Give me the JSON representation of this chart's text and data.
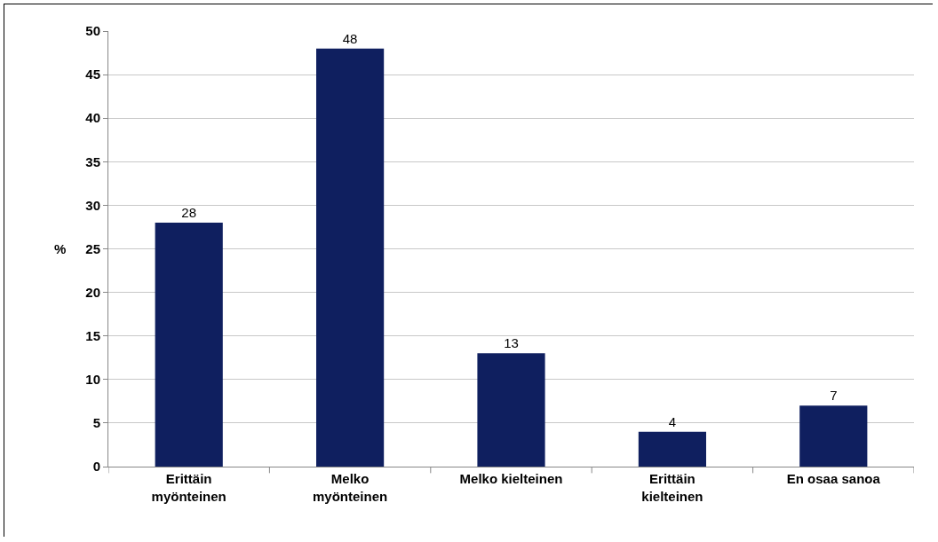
{
  "chart_data": {
    "type": "bar",
    "ylabel": "%",
    "categories": [
      "Erittäin\nmyönteinen",
      "Melko\nmyönteinen",
      "Melko kielteinen",
      "Erittäin\nkielteinen",
      "En osaa sanoa"
    ],
    "values": [
      28,
      48,
      13,
      4,
      7
    ],
    "color": "#0f1f5f",
    "data_labels": true,
    "ylim": [
      0,
      50
    ],
    "yticks": [
      0,
      5,
      10,
      15,
      20,
      25,
      30,
      35,
      40,
      45,
      50
    ],
    "grid": "y",
    "legend": false
  }
}
